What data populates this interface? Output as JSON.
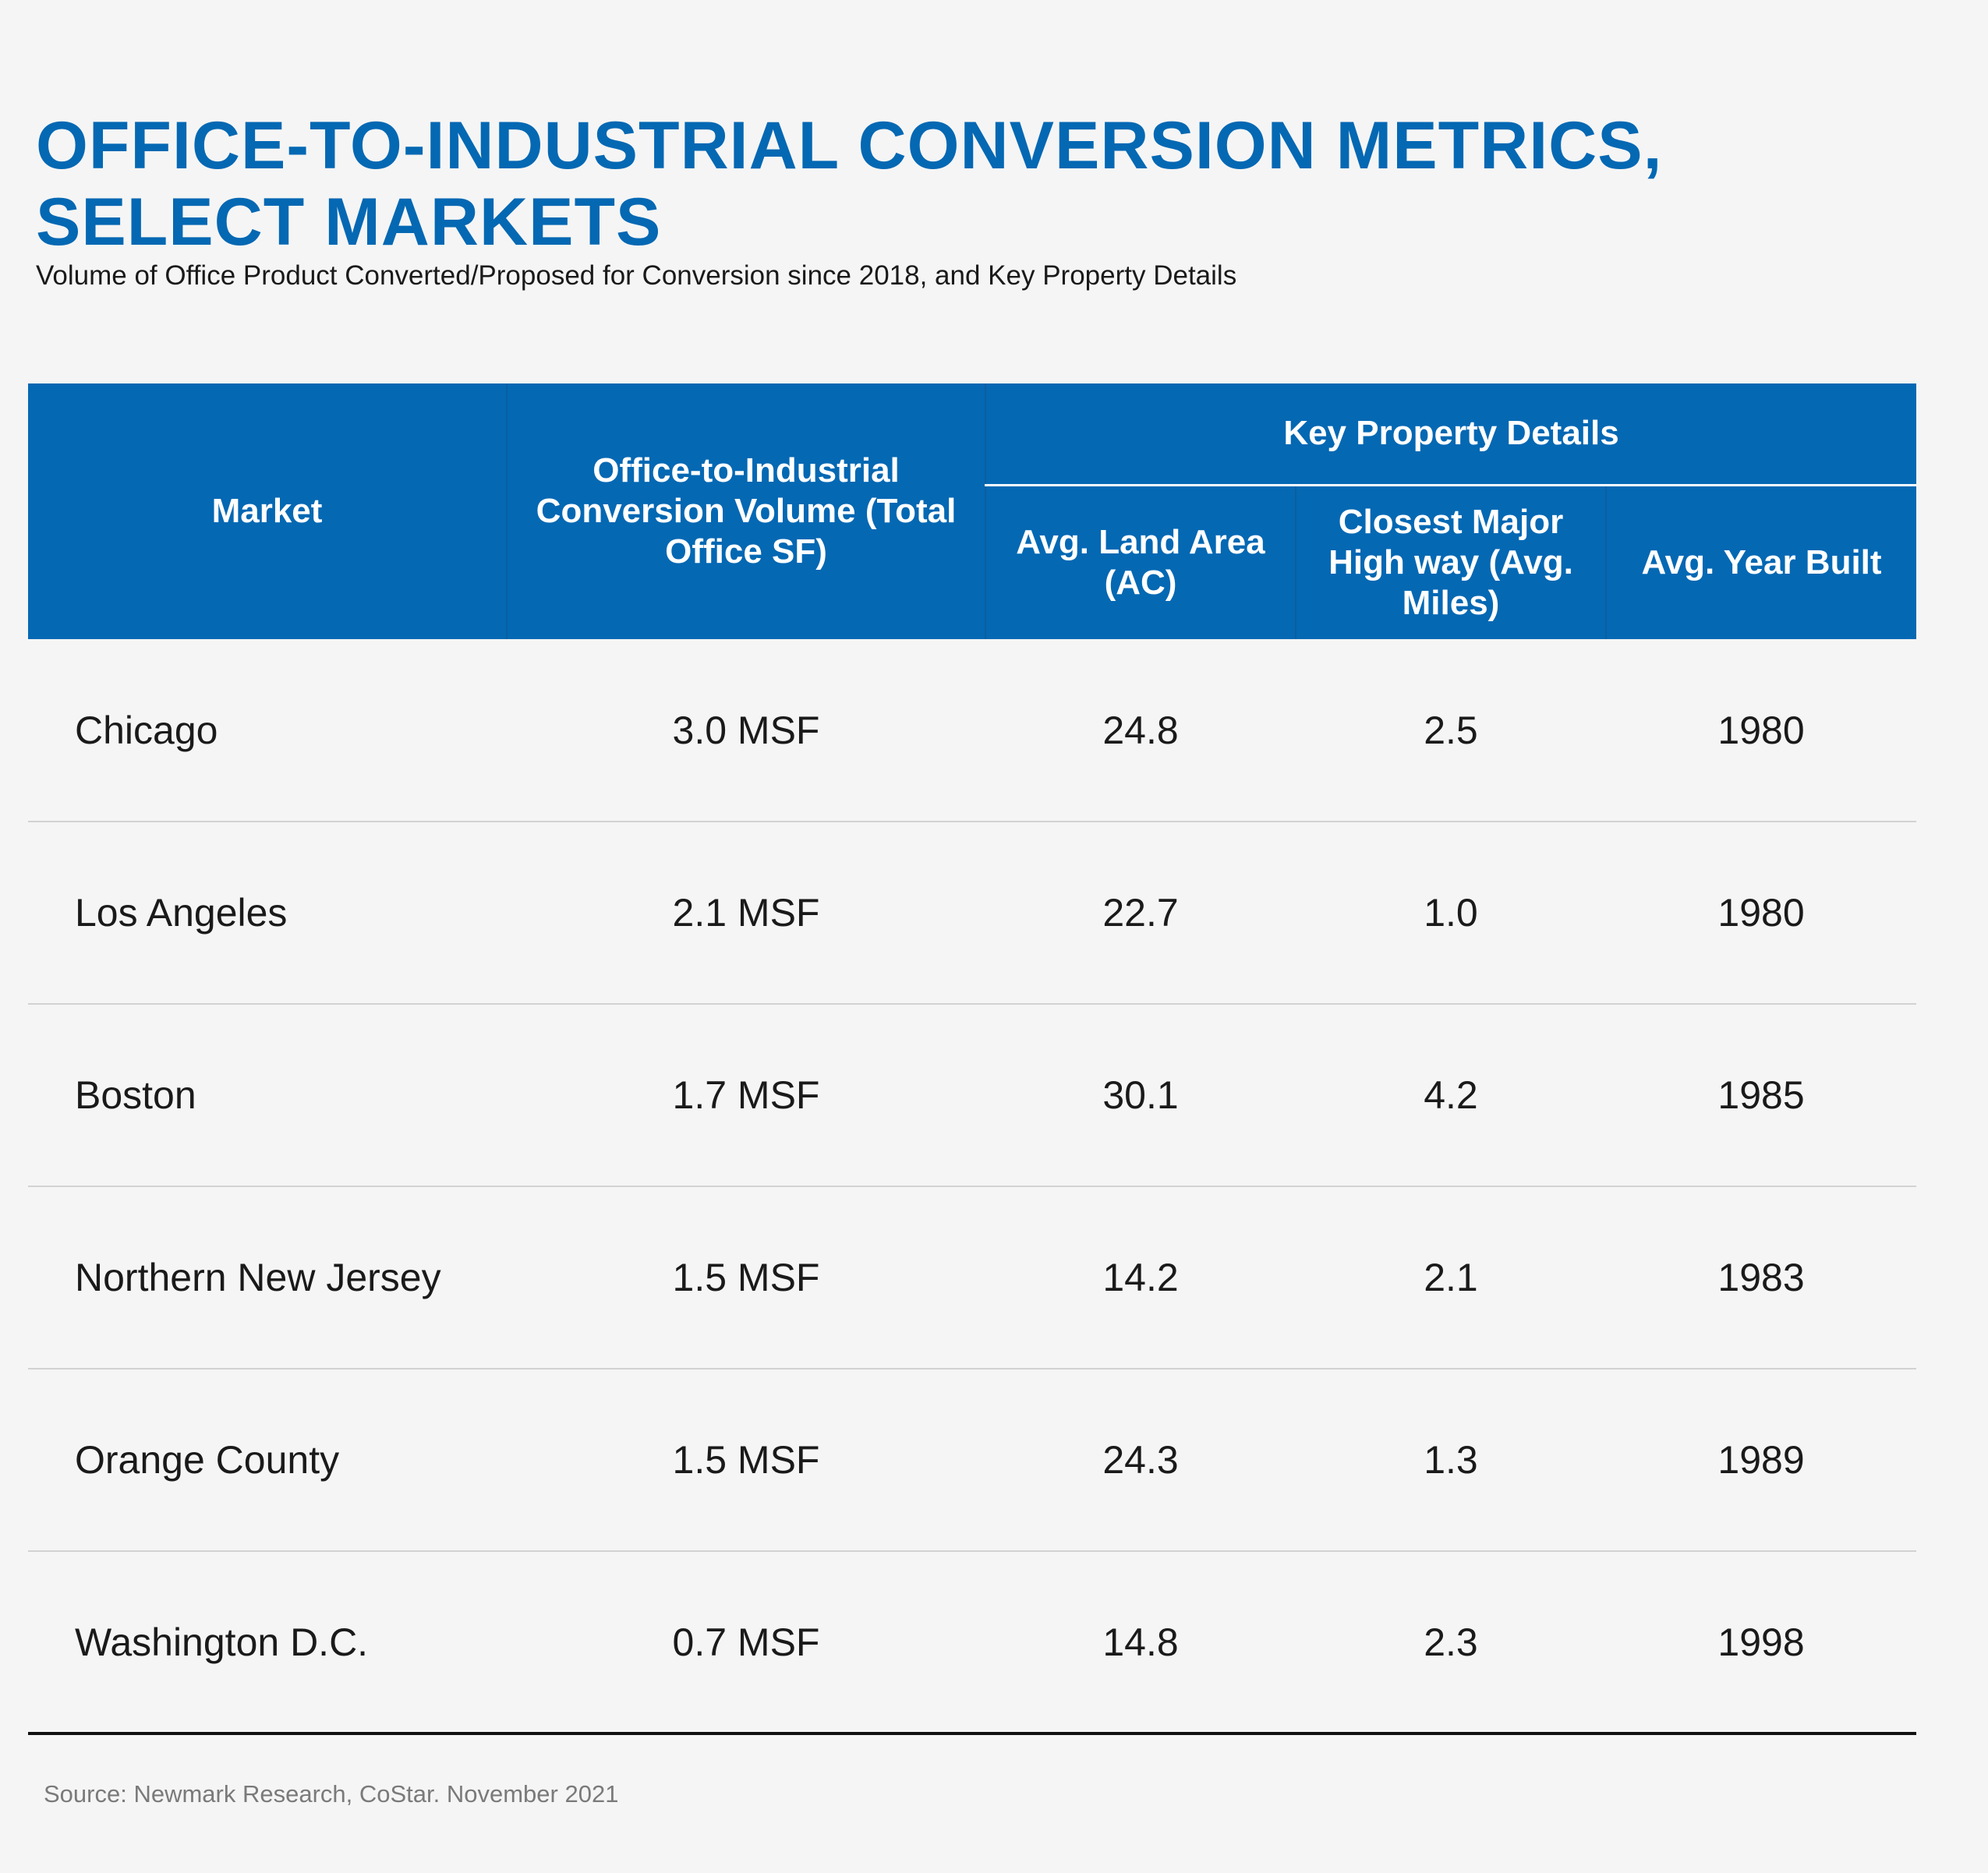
{
  "chart_data": {
    "type": "table",
    "title": "OFFICE-TO-INDUSTRIAL CONVERSION METRICS, SELECT MARKETS",
    "subtitle": "Volume of Office Product Converted/Proposed for Conversion since 2018, and Key Property Details",
    "header": {
      "market": "Market",
      "volume": "Office-to-Industrial Conversion Volume (Total Office SF)",
      "group": "Key Property Details",
      "land_area": "Avg. Land Area (AC)",
      "highway": "Closest Major High way (Avg. Miles)",
      "year_built": "Avg. Year Built"
    },
    "rows": [
      {
        "market": "Chicago",
        "volume": "3.0 MSF",
        "land_area": "24.8",
        "highway": "2.5",
        "year_built": "1980"
      },
      {
        "market": "Los Angeles",
        "volume": "2.1 MSF",
        "land_area": "22.7",
        "highway": "1.0",
        "year_built": "1980"
      },
      {
        "market": "Boston",
        "volume": "1.7 MSF",
        "land_area": "30.1",
        "highway": "4.2",
        "year_built": "1985"
      },
      {
        "market": "Northern New Jersey",
        "volume": "1.5 MSF",
        "land_area": "14.2",
        "highway": "2.1",
        "year_built": "1983"
      },
      {
        "market": "Orange County",
        "volume": "1.5 MSF",
        "land_area": "24.3",
        "highway": "1.3",
        "year_built": "1989"
      },
      {
        "market": "Washington D.C.",
        "volume": "0.7 MSF",
        "land_area": "14.8",
        "highway": "2.3",
        "year_built": "1998"
      }
    ],
    "source": "Source: Newmark Research, CoStar. November 2021"
  },
  "colors": {
    "accent": "#0468b3",
    "background": "#f5f5f5",
    "row_divider": "#d2d2d2",
    "source_text": "#7a7a7a"
  }
}
